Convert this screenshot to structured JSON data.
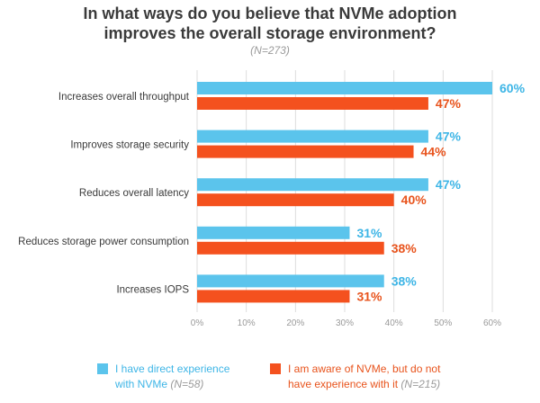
{
  "chart_data": {
    "type": "bar",
    "orientation": "horizontal",
    "title_line1": "In what ways do you believe that NVMe adoption",
    "title_line2": "improves the overall storage environment?",
    "subtitle": "(N=273)",
    "categories": [
      "Increases overall throughput",
      "Improves storage security",
      "Reduces overall latency",
      "Reduces storage power consumption",
      "Increases IOPS"
    ],
    "series": [
      {
        "name": "I have direct experience with NVMe",
        "legend_line1": "I have direct experience",
        "legend_line2": "with NVMe",
        "n": "(N=58)",
        "color": "#5bc4ec",
        "label_color": "#3db5e6",
        "values": [
          60,
          47,
          47,
          31,
          38
        ],
        "labels": [
          "60%",
          "47%",
          "47%",
          "31%",
          "38%"
        ]
      },
      {
        "name": "I am aware of NVMe, but do not have experience with it",
        "legend_line1": "I am aware of NVMe, but do not",
        "legend_line2": "have experience with it",
        "n": "(N=215)",
        "color": "#f4511e",
        "label_color": "#e8531c",
        "values": [
          47,
          44,
          40,
          38,
          31
        ],
        "labels": [
          "47%",
          "44%",
          "40%",
          "38%",
          "31%"
        ]
      }
    ],
    "xlim": [
      0,
      60
    ],
    "xticks": [
      "0%",
      "10%",
      "20%",
      "30%",
      "40%",
      "50%",
      "60%"
    ],
    "grid": true
  }
}
